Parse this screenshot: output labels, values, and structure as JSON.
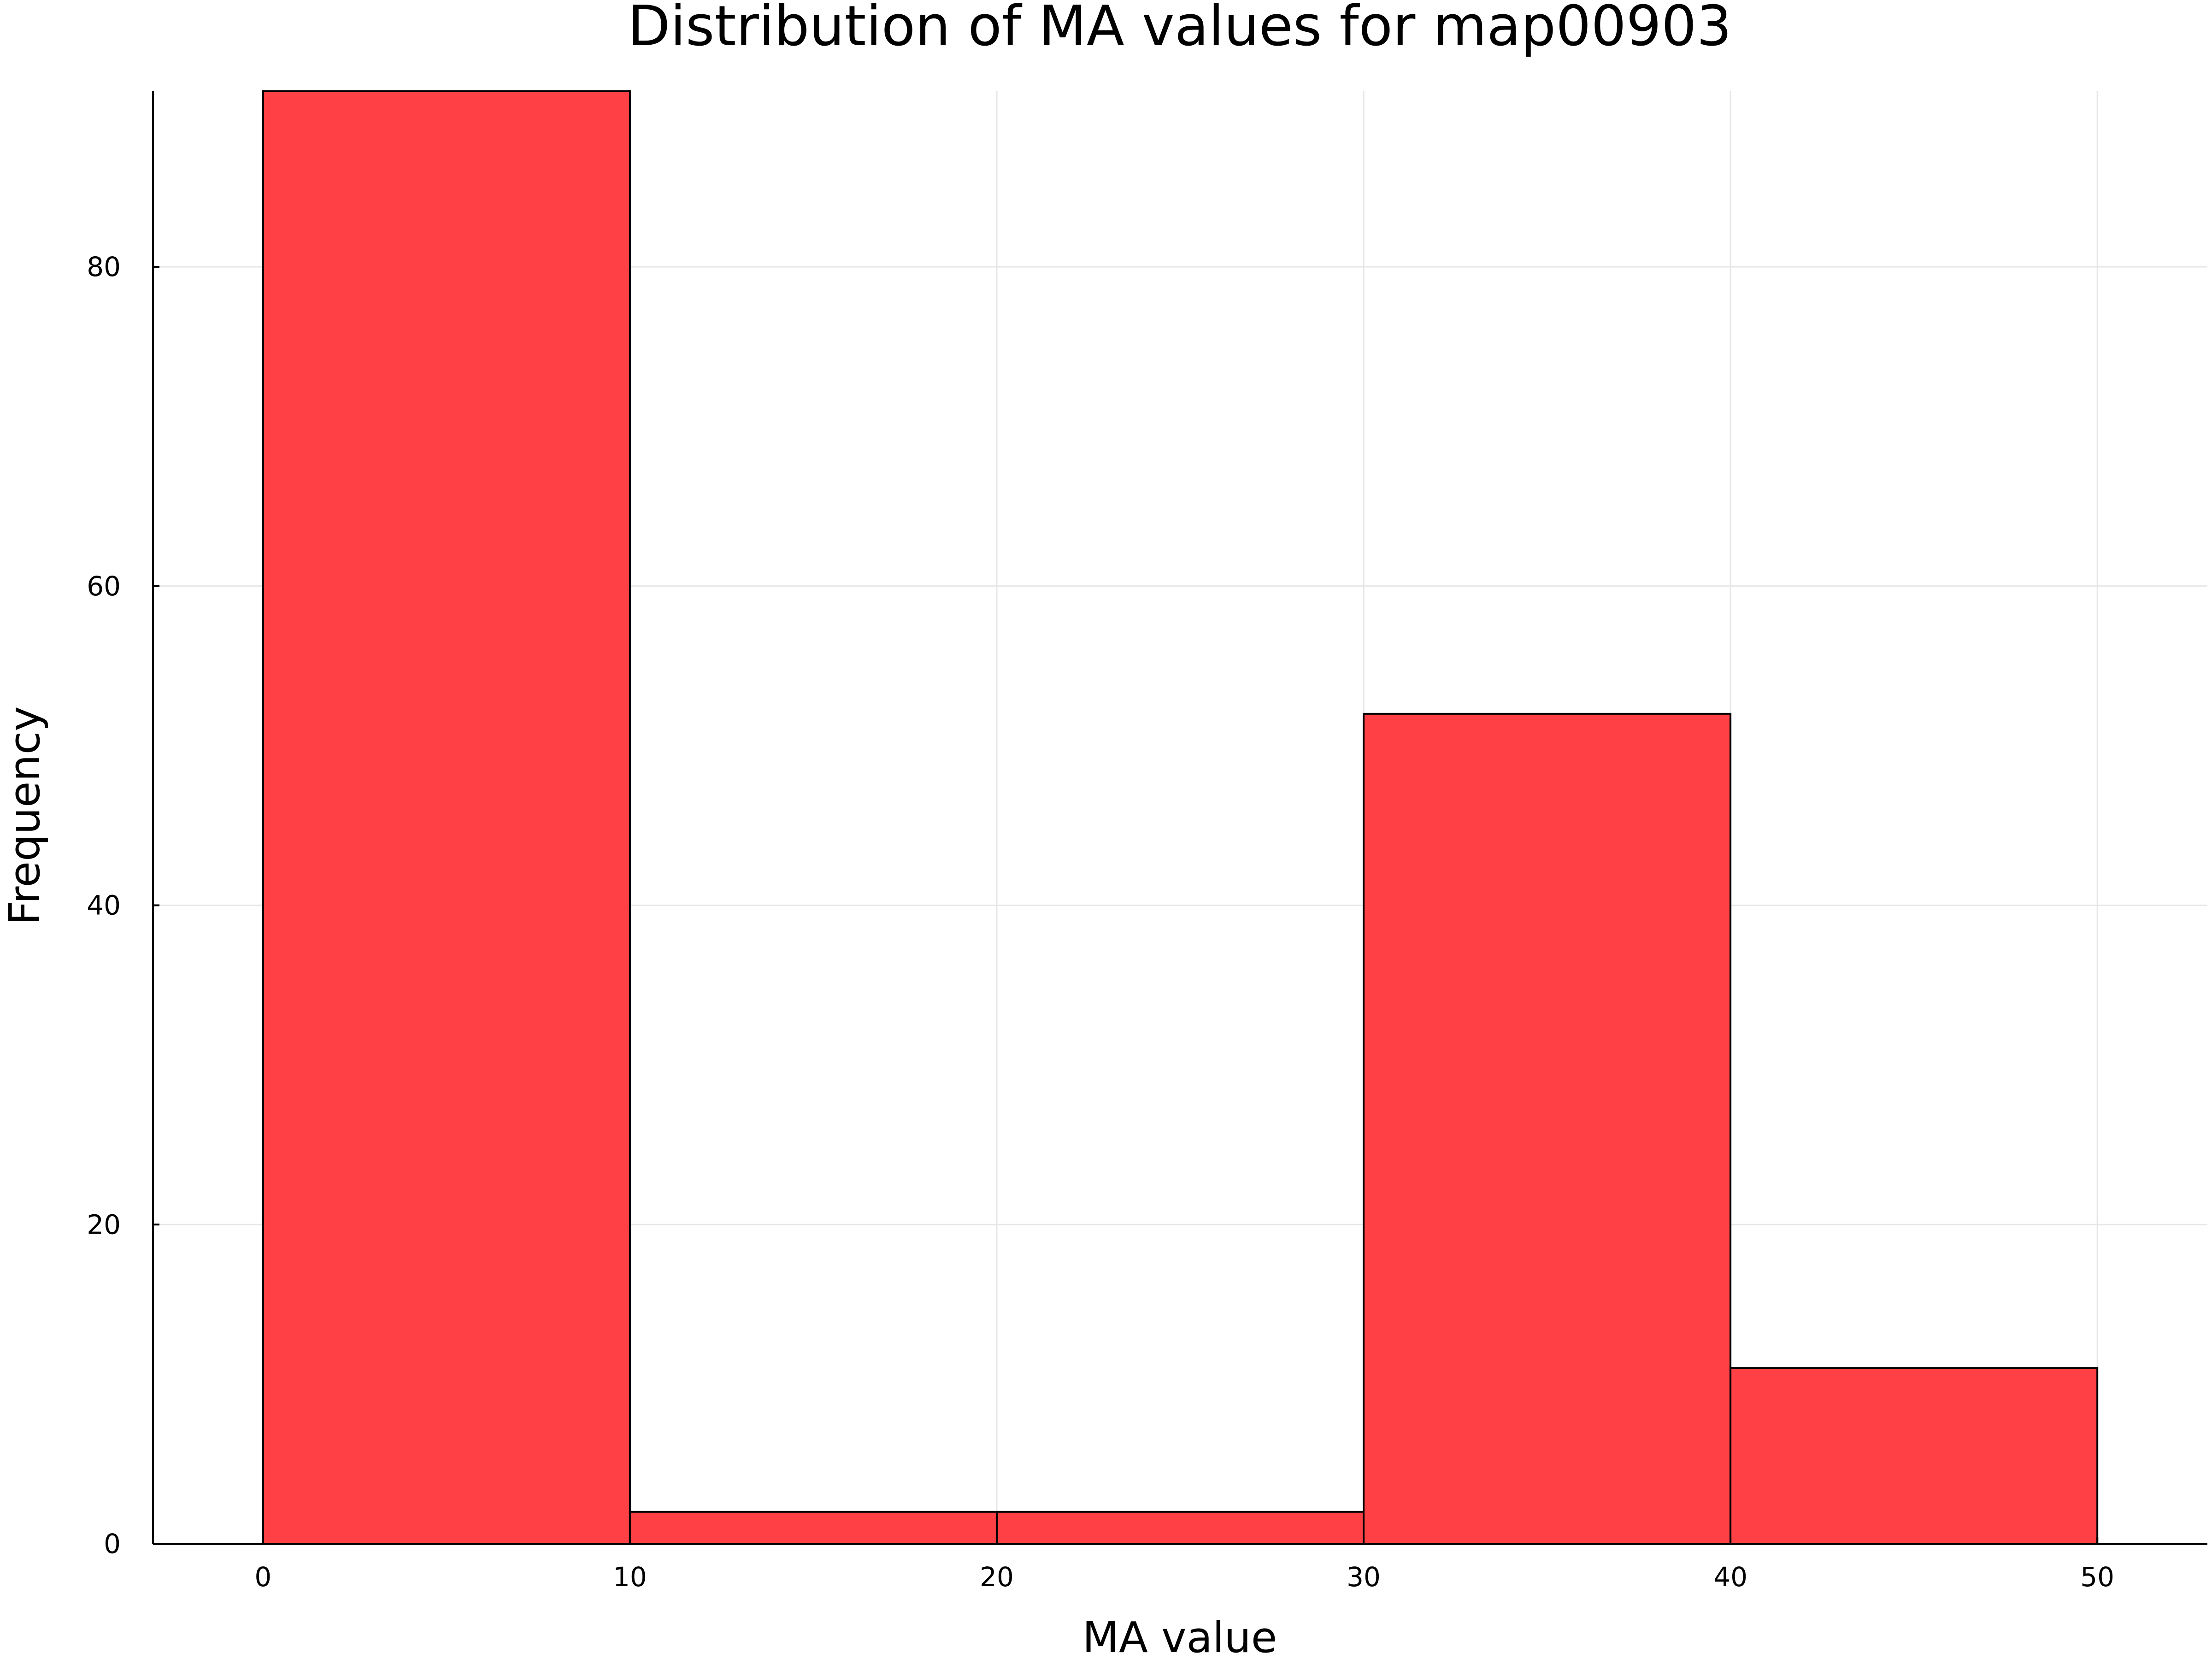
{
  "chart_data": {
    "type": "bar",
    "title": "Distribution of MA values for map00903",
    "xlabel": "MA value",
    "ylabel": "Frequency",
    "bin_edges": [
      0,
      10,
      20,
      30,
      40,
      50
    ],
    "values": [
      91,
      2,
      2,
      52,
      11
    ],
    "xlim": [
      -3,
      53
    ],
    "ylim": [
      0,
      91
    ],
    "x_ticks": [
      0,
      10,
      20,
      30,
      40,
      50
    ],
    "y_ticks": [
      0,
      20,
      40,
      60,
      80
    ],
    "grid": true,
    "legend": "none",
    "bar_color": "#ff4045",
    "edge_color": "#000000",
    "grid_color": "#e6e6e6"
  }
}
